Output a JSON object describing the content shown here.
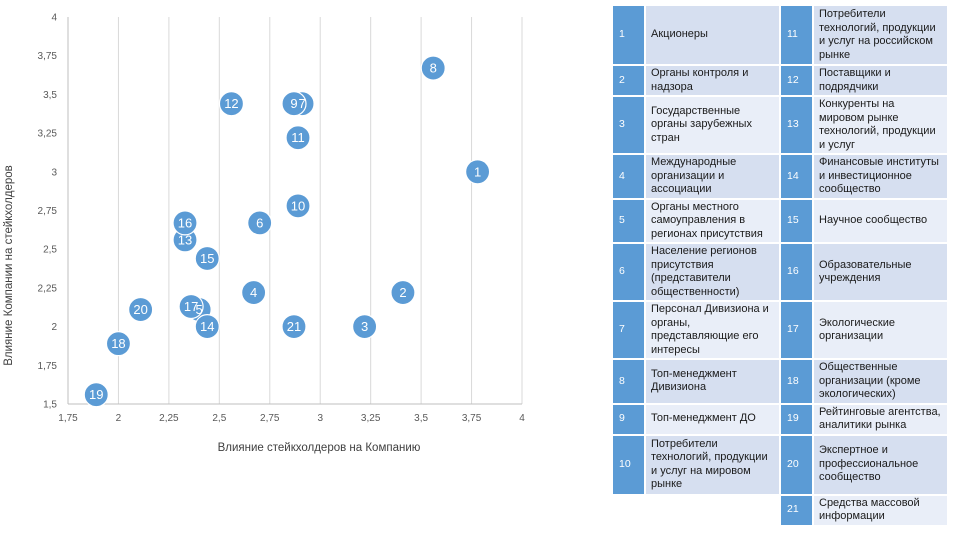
{
  "chart_data": {
    "type": "scatter",
    "title": "",
    "xlabel": "Влияние стейкхолдеров на Компанию",
    "ylabel": "Влияние Компании на стейкхолдеров",
    "xlim": [
      1.75,
      4
    ],
    "ylim": [
      1.5,
      4
    ],
    "xticks": [
      "1,75",
      "2",
      "2,25",
      "2,5",
      "2,75",
      "3",
      "3,25",
      "3,5",
      "3,75",
      "4"
    ],
    "yticks": [
      "1,5",
      "1,75",
      "2",
      "2,25",
      "2,5",
      "2,75",
      "3",
      "3,25",
      "3,5",
      "3,75",
      "4"
    ],
    "grid": "vertical",
    "marker_color": "#5b9bd5",
    "points": [
      {
        "label": "1",
        "x": 3.78,
        "y": 3.0
      },
      {
        "label": "2",
        "x": 3.41,
        "y": 2.22
      },
      {
        "label": "3",
        "x": 3.22,
        "y": 2.0
      },
      {
        "label": "4",
        "x": 2.67,
        "y": 2.22
      },
      {
        "label": "5",
        "x": 2.4,
        "y": 2.11
      },
      {
        "label": "6",
        "x": 2.7,
        "y": 2.67
      },
      {
        "label": "7",
        "x": 2.91,
        "y": 3.44
      },
      {
        "label": "8",
        "x": 3.56,
        "y": 3.67
      },
      {
        "label": "9",
        "x": 2.87,
        "y": 3.44
      },
      {
        "label": "10",
        "x": 2.89,
        "y": 2.78
      },
      {
        "label": "11",
        "x": 2.89,
        "y": 3.22
      },
      {
        "label": "12",
        "x": 2.56,
        "y": 3.44
      },
      {
        "label": "13",
        "x": 2.33,
        "y": 2.56
      },
      {
        "label": "14",
        "x": 2.44,
        "y": 2.0
      },
      {
        "label": "15",
        "x": 2.44,
        "y": 2.44
      },
      {
        "label": "16",
        "x": 2.33,
        "y": 2.67
      },
      {
        "label": "17",
        "x": 2.36,
        "y": 2.13
      },
      {
        "label": "18",
        "x": 2.0,
        "y": 1.89
      },
      {
        "label": "19",
        "x": 1.89,
        "y": 1.56
      },
      {
        "label": "20",
        "x": 2.11,
        "y": 2.11
      },
      {
        "label": "21",
        "x": 2.87,
        "y": 2.0
      }
    ]
  },
  "legend": {
    "rows": [
      {
        "left_num": "1",
        "left_name": "Акционеры",
        "right_num": "11",
        "right_name": "Потребители технологий, продукции и услуг на российском рынке"
      },
      {
        "left_num": "2",
        "left_name": "Органы контроля и надзора",
        "right_num": "12",
        "right_name": "Поставщики и подрядчики"
      },
      {
        "left_num": "3",
        "left_name": "Государственные органы зарубежных стран",
        "right_num": "13",
        "right_name": "Конкуренты на мировом рынке технологий, продукции и услуг"
      },
      {
        "left_num": "4",
        "left_name": "Международные организации и ассоциации",
        "right_num": "14",
        "right_name": "Финансовые институты и инвестиционное сообщество"
      },
      {
        "left_num": "5",
        "left_name": "Органы местного самоуправления в регионах присутствия",
        "right_num": "15",
        "right_name": "Научное сообщество"
      },
      {
        "left_num": "6",
        "left_name": "Население регионов присутствия (представители общественности)",
        "right_num": "16",
        "right_name": "Образовательные учреждения"
      },
      {
        "left_num": "7",
        "left_name": "Персонал Дивизиона и органы, представляющие его интересы",
        "right_num": "17",
        "right_name": "Экологические организации"
      },
      {
        "left_num": "8",
        "left_name": "Топ-менеджмент Дивизиона",
        "right_num": "18",
        "right_name": "Общественные организации (кроме экологических)"
      },
      {
        "left_num": "9",
        "left_name": "Топ-менеджмент ДО",
        "right_num": "19",
        "right_name": "Рейтинговые агентства, аналитики рынка"
      },
      {
        "left_num": "10",
        "left_name": "Потребители технологий, продукции и услуг на мировом рынке",
        "right_num": "20",
        "right_name": "Экспертное и профессиональное сообщество"
      },
      {
        "left_num": "",
        "left_name": "",
        "right_num": "21",
        "right_name": "Средства массовой информации"
      }
    ]
  }
}
